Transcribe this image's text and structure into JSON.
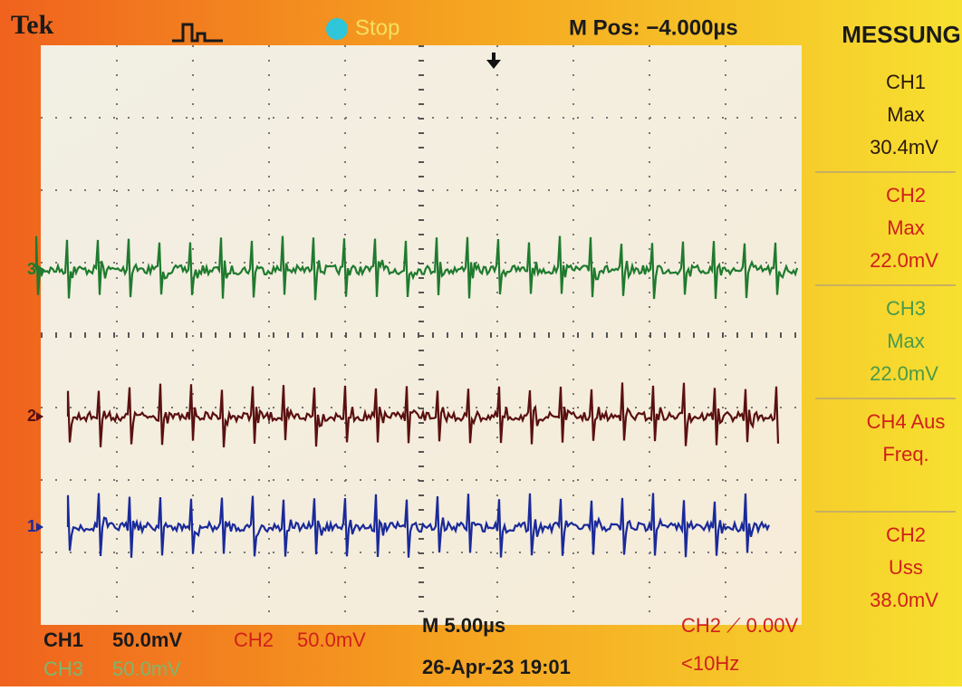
{
  "header": {
    "brand": "Tek",
    "status": "Stop",
    "position": "M Pos: −4.000µs"
  },
  "menu": {
    "title": "MESSUNG",
    "items": [
      {
        "channel": "CH1",
        "measure": "Max",
        "value": "30.4mV",
        "color": "#2a1a0a"
      },
      {
        "channel": "CH2",
        "measure": "Max",
        "value": "22.0mV",
        "color": "#d0201a"
      },
      {
        "channel": "CH3",
        "measure": "Max",
        "value": "22.0mV",
        "color": "#4a9a4a"
      },
      {
        "channel": "CH4 Aus",
        "measure": "Freq.",
        "color": "#d0201a"
      },
      {
        "channel": "CH2",
        "measure": "Uss",
        "value": "38.0mV",
        "color": "#d0201a"
      }
    ]
  },
  "traces": [
    {
      "marker": "3",
      "color": "#1f7a2e"
    },
    {
      "marker": "2",
      "color": "#5a1010"
    },
    {
      "marker": "1",
      "color": "#1a2a9a"
    }
  ],
  "footer": {
    "ch1": "CH1",
    "ch1_scale": "50.0mV",
    "ch2": "CH2",
    "ch2_scale": "50.0mV",
    "ch3": "CH3",
    "ch3_scale": "50.0mV",
    "timebase": "M 5.00µs",
    "date": "26-Apr-23 19:01",
    "trigger": "CH2 ⟋ 0.00V",
    "trigger_freq": "<10Hz"
  }
}
